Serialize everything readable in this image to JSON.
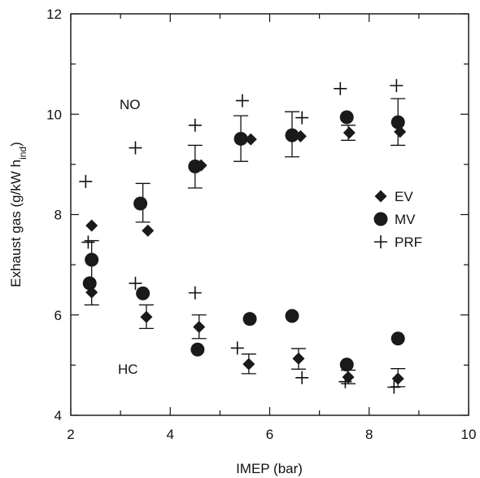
{
  "chart_data": {
    "type": "scatter",
    "xlabel": "IMEP (bar)",
    "ylabel_main": "Exhaust gas (g/kW h",
    "ylabel_sub": "ind",
    "ylabel_close": ")",
    "xlim": [
      2,
      10
    ],
    "ylim": [
      4,
      12
    ],
    "x_ticks": [
      "2",
      "4",
      "6",
      "8",
      "10"
    ],
    "y_ticks": [
      "4",
      "6",
      "8",
      "10",
      "12"
    ],
    "legend_position": "right",
    "annotations": [
      {
        "text": "NO",
        "x": 3.1,
        "y": 9.8
      },
      {
        "text": "HC",
        "x": 3.1,
        "y": 4.8
      }
    ],
    "series": [
      {
        "name": "EV",
        "marker": "diamond",
        "points": [
          {
            "x": 2.42,
            "y": 7.78
          },
          {
            "x": 2.42,
            "y": 6.45
          },
          {
            "x": 3.55,
            "y": 7.68
          },
          {
            "x": 3.52,
            "y": 5.96
          },
          {
            "x": 4.62,
            "y": 8.98
          },
          {
            "x": 4.58,
            "y": 5.76
          },
          {
            "x": 5.62,
            "y": 9.5
          },
          {
            "x": 5.58,
            "y": 5.02
          },
          {
            "x": 6.62,
            "y": 9.56
          },
          {
            "x": 6.58,
            "y": 5.13
          },
          {
            "x": 7.6,
            "y": 9.63
          },
          {
            "x": 7.58,
            "y": 4.76
          },
          {
            "x": 8.62,
            "y": 9.65
          },
          {
            "x": 8.58,
            "y": 4.73
          }
        ]
      },
      {
        "name": "MV",
        "marker": "circle",
        "points": [
          {
            "x": 2.42,
            "y": 7.1
          },
          {
            "x": 2.38,
            "y": 6.63
          },
          {
            "x": 3.4,
            "y": 8.22
          },
          {
            "x": 3.45,
            "y": 6.43
          },
          {
            "x": 4.5,
            "y": 8.96
          },
          {
            "x": 4.55,
            "y": 5.31
          },
          {
            "x": 5.42,
            "y": 9.51
          },
          {
            "x": 5.6,
            "y": 5.92
          },
          {
            "x": 6.45,
            "y": 9.58
          },
          {
            "x": 6.45,
            "y": 5.98
          },
          {
            "x": 7.55,
            "y": 9.94
          },
          {
            "x": 7.55,
            "y": 5.01
          },
          {
            "x": 8.58,
            "y": 9.84
          },
          {
            "x": 8.58,
            "y": 5.53
          }
        ]
      },
      {
        "name": "PRF",
        "marker": "plus",
        "points": [
          {
            "x": 2.3,
            "y": 8.66
          },
          {
            "x": 2.35,
            "y": 7.45
          },
          {
            "x": 3.3,
            "y": 9.33
          },
          {
            "x": 3.3,
            "y": 6.63
          },
          {
            "x": 4.5,
            "y": 9.78
          },
          {
            "x": 4.5,
            "y": 6.44
          },
          {
            "x": 5.45,
            "y": 10.27
          },
          {
            "x": 5.35,
            "y": 5.34
          },
          {
            "x": 6.65,
            "y": 9.93
          },
          {
            "x": 6.65,
            "y": 4.75
          },
          {
            "x": 7.42,
            "y": 10.51
          },
          {
            "x": 7.52,
            "y": 4.67
          },
          {
            "x": 8.55,
            "y": 10.57
          },
          {
            "x": 8.5,
            "y": 4.56
          }
        ]
      }
    ],
    "error_bars": [
      {
        "x": 2.42,
        "low": 6.2,
        "high": 7.48
      },
      {
        "x": 3.45,
        "low": 7.85,
        "high": 8.62
      },
      {
        "x": 3.52,
        "low": 5.73,
        "high": 6.2
      },
      {
        "x": 4.5,
        "low": 8.53,
        "high": 9.38
      },
      {
        "x": 4.58,
        "low": 5.53,
        "high": 6.0
      },
      {
        "x": 5.42,
        "low": 9.06,
        "high": 9.97
      },
      {
        "x": 5.58,
        "low": 4.83,
        "high": 5.22
      },
      {
        "x": 6.45,
        "low": 9.15,
        "high": 10.05
      },
      {
        "x": 6.58,
        "low": 4.92,
        "high": 5.33
      },
      {
        "x": 7.58,
        "low": 9.48,
        "high": 9.78
      },
      {
        "x": 7.58,
        "low": 4.63,
        "high": 4.9
      },
      {
        "x": 8.58,
        "low": 9.38,
        "high": 10.31
      },
      {
        "x": 8.58,
        "low": 4.57,
        "high": 4.93
      }
    ]
  }
}
